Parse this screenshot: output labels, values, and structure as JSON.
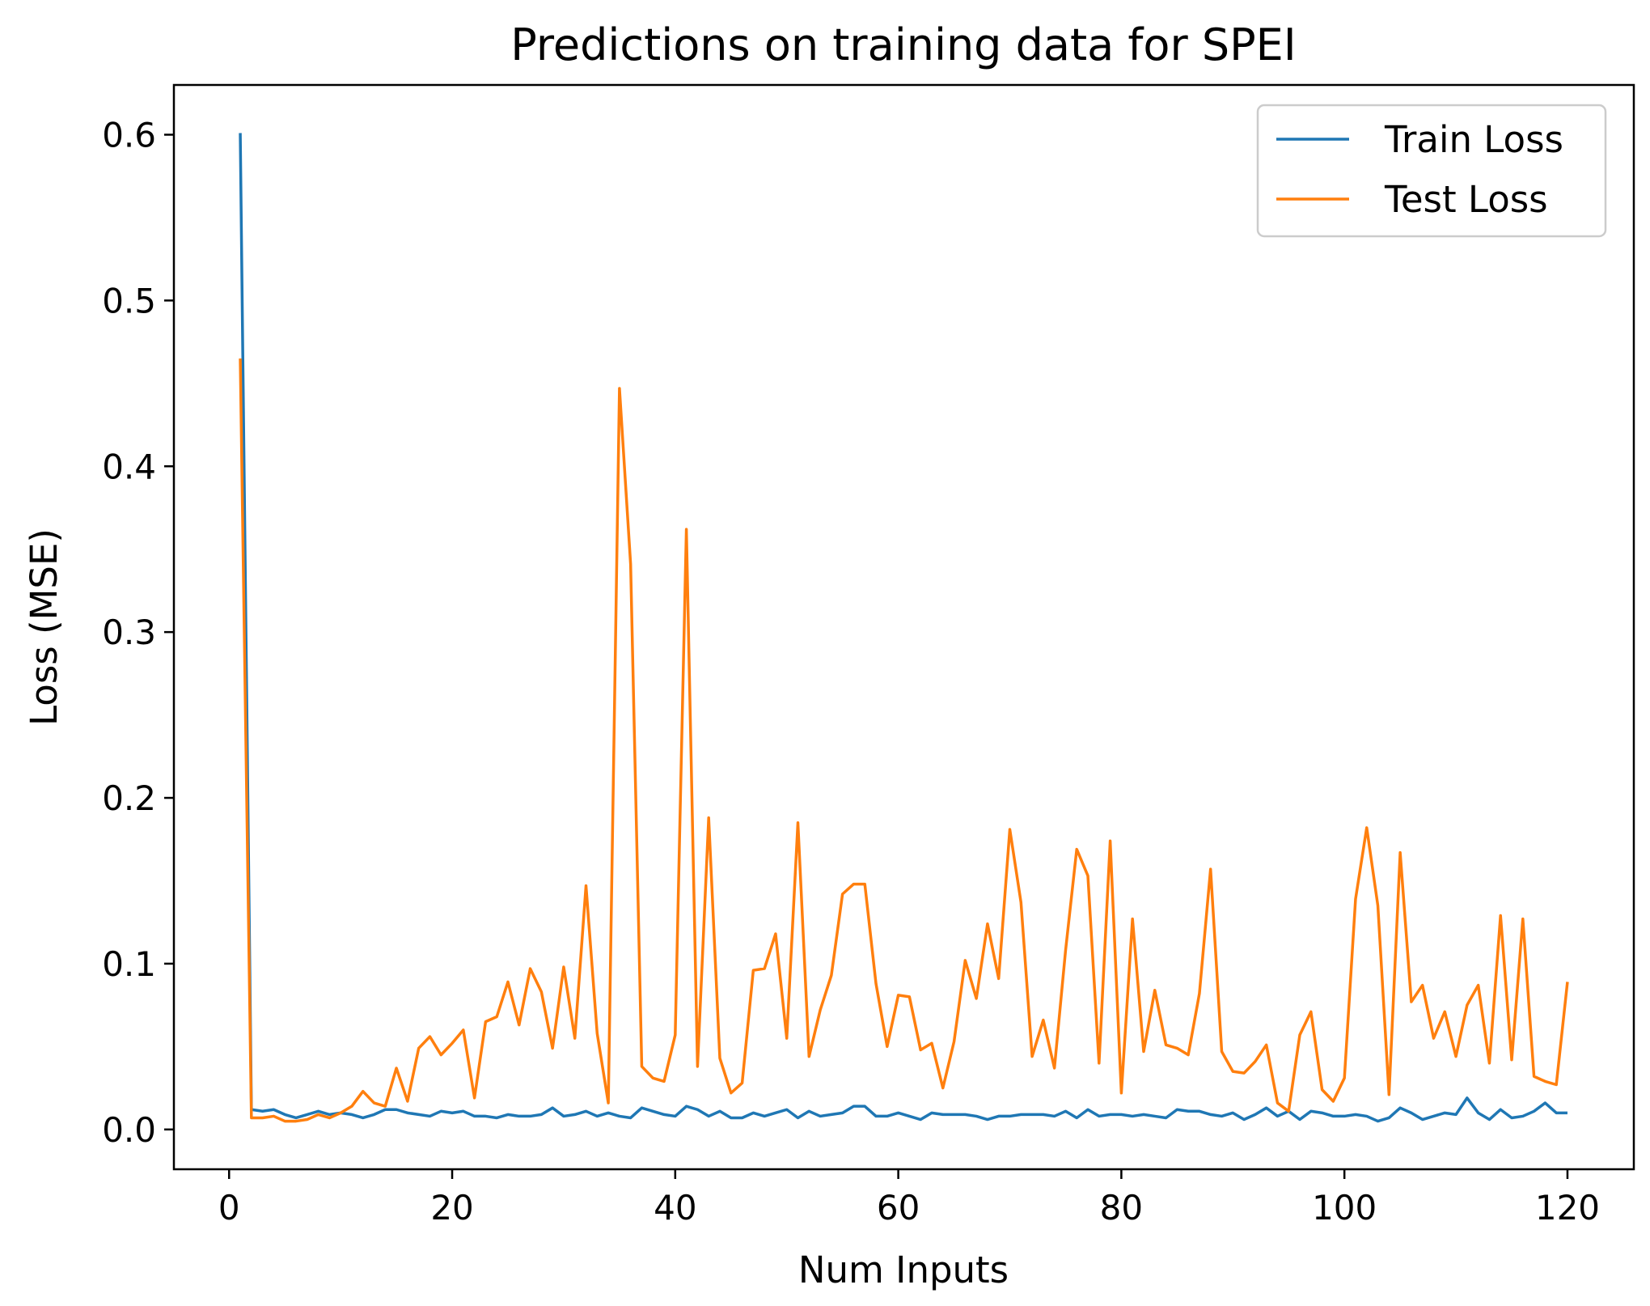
{
  "chart_data": {
    "type": "line",
    "title": "Predictions on training data for SPEI",
    "xlabel": "Num Inputs",
    "ylabel": "Loss (MSE)",
    "xlim": [
      -4.95,
      125.95
    ],
    "ylim": [
      -0.024,
      0.63
    ],
    "xticks": [
      0,
      20,
      40,
      60,
      80,
      100,
      120
    ],
    "yticks": [
      0.0,
      0.1,
      0.2,
      0.3,
      0.4,
      0.5,
      0.6
    ],
    "xtick_labels": [
      "0",
      "20",
      "40",
      "60",
      "80",
      "100",
      "120"
    ],
    "ytick_labels": [
      "0.0",
      "0.1",
      "0.2",
      "0.3",
      "0.4",
      "0.5",
      "0.6"
    ],
    "grid": false,
    "legend_position": "upper right",
    "x": [
      1,
      2,
      3,
      4,
      5,
      6,
      7,
      8,
      9,
      10,
      11,
      12,
      13,
      14,
      15,
      16,
      17,
      18,
      19,
      20,
      21,
      22,
      23,
      24,
      25,
      26,
      27,
      28,
      29,
      30,
      31,
      32,
      33,
      34,
      35,
      36,
      37,
      38,
      39,
      40,
      41,
      42,
      43,
      44,
      45,
      46,
      47,
      48,
      49,
      50,
      51,
      52,
      53,
      54,
      55,
      56,
      57,
      58,
      59,
      60,
      61,
      62,
      63,
      64,
      65,
      66,
      67,
      68,
      69,
      70,
      71,
      72,
      73,
      74,
      75,
      76,
      77,
      78,
      79,
      80,
      81,
      82,
      83,
      84,
      85,
      86,
      87,
      88,
      89,
      90,
      91,
      92,
      93,
      94,
      95,
      96,
      97,
      98,
      99,
      100,
      101,
      102,
      103,
      104,
      105,
      106,
      107,
      108,
      109,
      110,
      111,
      112,
      113,
      114,
      115,
      116,
      117,
      118,
      119,
      120
    ],
    "series": [
      {
        "name": "Train Loss",
        "color": "#1f77b4",
        "values": [
          0.601,
          0.012,
          0.011,
          0.012,
          0.009,
          0.007,
          0.009,
          0.011,
          0.009,
          0.01,
          0.009,
          0.007,
          0.009,
          0.012,
          0.012,
          0.01,
          0.009,
          0.008,
          0.011,
          0.01,
          0.011,
          0.008,
          0.008,
          0.007,
          0.009,
          0.008,
          0.008,
          0.009,
          0.013,
          0.008,
          0.009,
          0.011,
          0.008,
          0.01,
          0.008,
          0.007,
          0.013,
          0.011,
          0.009,
          0.008,
          0.014,
          0.012,
          0.008,
          0.011,
          0.007,
          0.007,
          0.01,
          0.008,
          0.01,
          0.012,
          0.007,
          0.011,
          0.008,
          0.009,
          0.01,
          0.014,
          0.014,
          0.008,
          0.008,
          0.01,
          0.008,
          0.006,
          0.01,
          0.009,
          0.009,
          0.009,
          0.008,
          0.006,
          0.008,
          0.008,
          0.009,
          0.009,
          0.009,
          0.008,
          0.011,
          0.007,
          0.012,
          0.008,
          0.009,
          0.009,
          0.008,
          0.009,
          0.008,
          0.007,
          0.012,
          0.011,
          0.011,
          0.009,
          0.008,
          0.01,
          0.006,
          0.009,
          0.013,
          0.008,
          0.011,
          0.006,
          0.011,
          0.01,
          0.008,
          0.008,
          0.009,
          0.008,
          0.005,
          0.007,
          0.013,
          0.01,
          0.006,
          0.008,
          0.01,
          0.009,
          0.019,
          0.01,
          0.006,
          0.012,
          0.007,
          0.008,
          0.011,
          0.016,
          0.01,
          0.01
        ]
      },
      {
        "name": "Test Loss",
        "color": "#ff7f0e",
        "values": [
          0.465,
          0.007,
          0.007,
          0.008,
          0.005,
          0.005,
          0.006,
          0.009,
          0.007,
          0.01,
          0.014,
          0.023,
          0.016,
          0.014,
          0.037,
          0.017,
          0.049,
          0.056,
          0.045,
          0.052,
          0.06,
          0.019,
          0.065,
          0.068,
          0.089,
          0.063,
          0.097,
          0.083,
          0.049,
          0.098,
          0.055,
          0.147,
          0.058,
          0.016,
          0.447,
          0.341,
          0.038,
          0.031,
          0.029,
          0.057,
          0.362,
          0.038,
          0.188,
          0.043,
          0.022,
          0.028,
          0.096,
          0.097,
          0.118,
          0.055,
          0.185,
          0.044,
          0.072,
          0.093,
          0.142,
          0.148,
          0.148,
          0.088,
          0.05,
          0.081,
          0.08,
          0.048,
          0.052,
          0.025,
          0.053,
          0.102,
          0.079,
          0.124,
          0.091,
          0.181,
          0.137,
          0.044,
          0.066,
          0.037,
          0.108,
          0.169,
          0.153,
          0.04,
          0.174,
          0.022,
          0.127,
          0.047,
          0.084,
          0.051,
          0.049,
          0.045,
          0.082,
          0.157,
          0.047,
          0.035,
          0.034,
          0.041,
          0.051,
          0.016,
          0.011,
          0.057,
          0.071,
          0.024,
          0.017,
          0.031,
          0.139,
          0.182,
          0.135,
          0.021,
          0.167,
          0.077,
          0.087,
          0.055,
          0.071,
          0.044,
          0.075,
          0.087,
          0.04,
          0.129,
          0.042,
          0.127,
          0.032,
          0.029,
          0.027,
          0.089
        ]
      }
    ]
  }
}
